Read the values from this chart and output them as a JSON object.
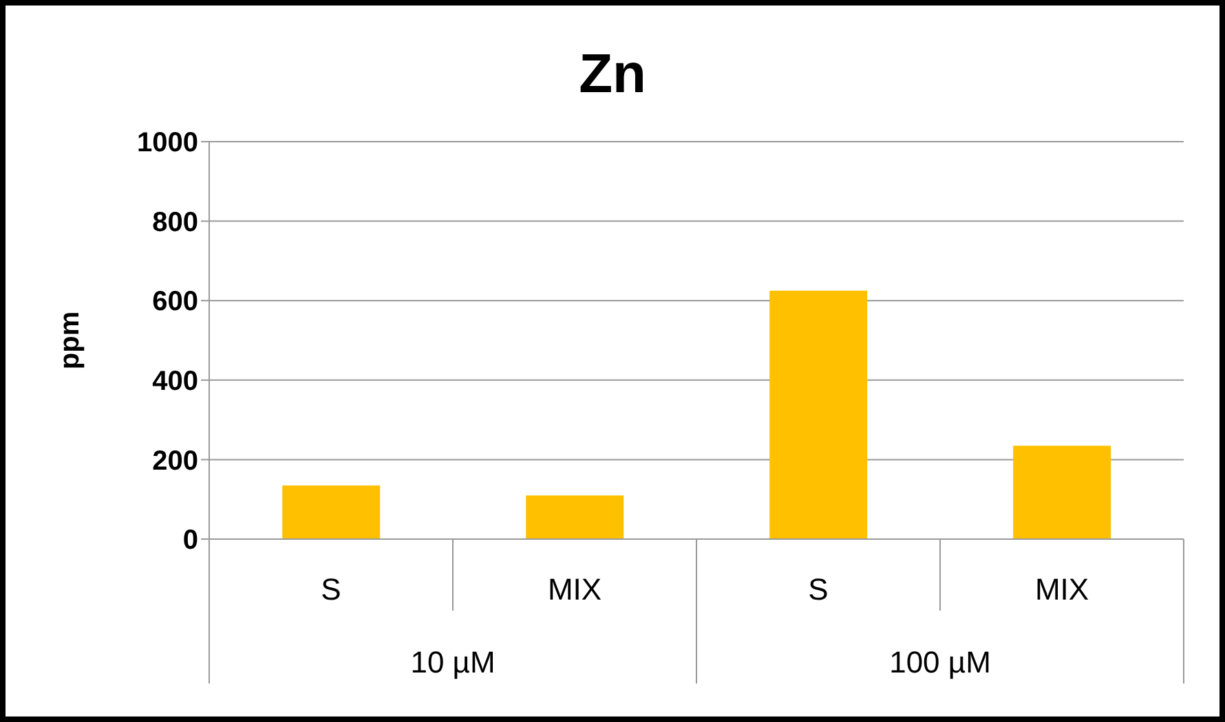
{
  "chart_data": {
    "type": "bar",
    "title": "Zn",
    "ylabel": "ppm",
    "categories": [
      "S",
      "MIX",
      "S",
      "MIX"
    ],
    "values": [
      135,
      110,
      625,
      235
    ],
    "color": "#ffc000",
    "annotations": [
      "10 µM",
      "100 µM"
    ],
    "ylim": [
      0,
      1000
    ],
    "yticks": [
      0,
      200,
      400,
      600,
      800,
      1000
    ],
    "grid": "y"
  }
}
